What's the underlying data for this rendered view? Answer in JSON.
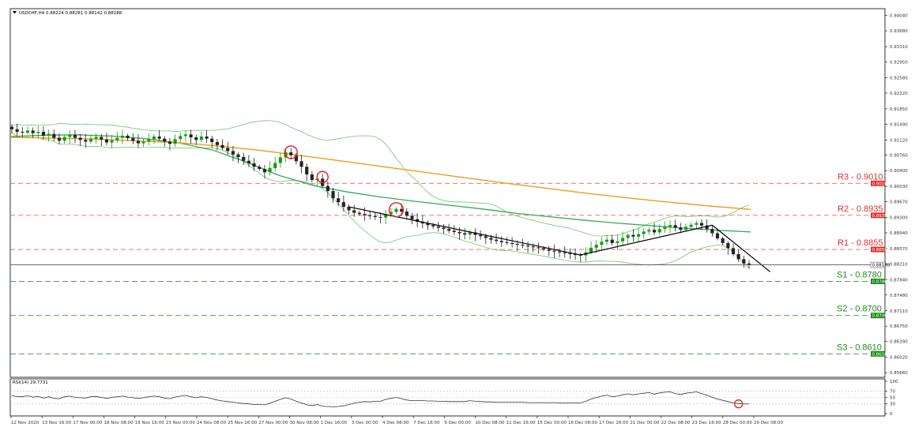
{
  "header": {
    "symbol": "USDCHF,H4",
    "ohlc": "0.88224 0.88281 0.88142 0.88188",
    "full": "USDCHF,H4  0.88224 0.88281 0.88142 0.88188"
  },
  "colors": {
    "candle_up": "#1a9a1a",
    "candle_down": "#222222",
    "bollinger": "#6cc66c",
    "ma_green": "#33aa55",
    "ma_orange": "#f39a1f",
    "resistance": "#e03030",
    "support": "#1e8a1e",
    "trendline": "#000000",
    "rsi_line": "#333333",
    "marker": "#e02020"
  },
  "chart_data": {
    "type": "line",
    "title": "USDCHF,H4",
    "y_ticks": [
      "0.94040",
      "0.93680",
      "0.93310",
      "0.92950",
      "0.92580",
      "0.92220",
      "0.91850",
      "0.91490",
      "0.91120",
      "0.90760",
      "0.90400",
      "0.90030",
      "0.89670",
      "0.89300",
      "0.88940",
      "0.88570",
      "0.88210",
      "0.87840",
      "0.87480",
      "0.87110",
      "0.86750",
      "0.86390",
      "0.86020",
      "0.85660"
    ],
    "ylim": [
      0.8555,
      0.942
    ],
    "current_price": 0.88188,
    "current_price_label": "0.88188",
    "x_ticks": [
      "12 Nov 2020",
      "13 Nov 16:00",
      "17 Nov 00:00",
      "18 Nov 08:00",
      "19 Nov 16:00",
      "23 Nov 00:00",
      "24 Nov 08:00",
      "25 Nov 16:00",
      "27 Nov 00:00",
      "30 Nov 08:00",
      "1 Dec 16:00",
      "3 Dec 00:00",
      "4 Dec 08:00",
      "7 Dec 16:00",
      "9 Dec 00:00",
      "10 Dec 08:00",
      "11 Dec 16:00",
      "15 Dec 00:00",
      "16 Dec 08:00",
      "17 Dec 16:00",
      "21 Dec 00:00",
      "22 Dec 08:00",
      "23 Dec 16:00",
      "28 Dec 00:00",
      "29 Dec 08:00"
    ],
    "levels": [
      {
        "label": "R3 - 0.9010",
        "tag": "0.90100",
        "value": 0.901,
        "kind": "resistance"
      },
      {
        "label": "R2 - 0.8935",
        "tag": "0.89350",
        "value": 0.8935,
        "kind": "resistance"
      },
      {
        "label": "R1 - 0.8855",
        "tag": "0.88550",
        "value": 0.8855,
        "kind": "resistance"
      },
      {
        "label": "S1 - 0.8780",
        "tag": "0.87800",
        "value": 0.878,
        "kind": "support"
      },
      {
        "label": "S2 - 0.8700",
        "tag": "0.87000",
        "value": 0.87,
        "kind": "support"
      },
      {
        "label": "S3 - 0.8610",
        "tag": "0.86100",
        "value": 0.861,
        "kind": "support"
      }
    ],
    "closes": [
      0.9137,
      0.9131,
      0.9129,
      0.9134,
      0.9128,
      0.9131,
      0.9122,
      0.9126,
      0.9117,
      0.911,
      0.9119,
      0.9124,
      0.9117,
      0.9112,
      0.9108,
      0.9115,
      0.9119,
      0.9113,
      0.9106,
      0.9111,
      0.9117,
      0.9122,
      0.9116,
      0.911,
      0.9104,
      0.9108,
      0.9114,
      0.912,
      0.9115,
      0.9108,
      0.9103,
      0.9114,
      0.9121,
      0.9125,
      0.9118,
      0.9112,
      0.912,
      0.9115,
      0.9107,
      0.91,
      0.9093,
      0.9086,
      0.9078,
      0.9072,
      0.9063,
      0.9057,
      0.9049,
      0.9044,
      0.9036,
      0.9046,
      0.9058,
      0.9071,
      0.9083,
      0.9076,
      0.9062,
      0.9049,
      0.9031,
      0.9018,
      0.9021,
      0.9004,
      0.8992,
      0.8975,
      0.8966,
      0.8955,
      0.8947,
      0.8941,
      0.8938,
      0.8935,
      0.8933,
      0.8931,
      0.893,
      0.8938,
      0.8943,
      0.895,
      0.8944,
      0.8934,
      0.8926,
      0.892,
      0.8916,
      0.8912,
      0.8909,
      0.8906,
      0.8903,
      0.8899,
      0.8896,
      0.8893,
      0.889,
      0.8895,
      0.8889,
      0.8886,
      0.8882,
      0.8878,
      0.8875,
      0.8872,
      0.887,
      0.8868,
      0.8866,
      0.8864,
      0.8862,
      0.886,
      0.8858,
      0.8855,
      0.8852,
      0.885,
      0.8848,
      0.8846,
      0.8844,
      0.8842,
      0.8841,
      0.8848,
      0.8859,
      0.8866,
      0.8873,
      0.8878,
      0.887,
      0.8874,
      0.8882,
      0.8889,
      0.8885,
      0.8891,
      0.8897,
      0.8901,
      0.8895,
      0.8903,
      0.8908,
      0.8912,
      0.8906,
      0.8901,
      0.8908,
      0.8913,
      0.8917,
      0.8911,
      0.8903,
      0.8893,
      0.8881,
      0.887,
      0.8858,
      0.8844,
      0.8832,
      0.8822,
      0.8819
    ],
    "series": [
      {
        "values": [
          0.912,
          0.9123,
          0.9124,
          0.9121,
          0.9115,
          0.9105,
          0.9088,
          0.906,
          0.9028,
          0.9005,
          0.899,
          0.8978,
          0.8968,
          0.8959,
          0.895,
          0.894,
          0.8932,
          0.8924,
          0.8917,
          0.8911,
          0.8905,
          0.89,
          0.8896
        ]
      },
      {
        "values": [
          0.9118,
          0.9116,
          0.9114,
          0.911,
          0.9106,
          0.9098,
          0.9088,
          0.9076,
          0.9063,
          0.905,
          0.9037,
          0.9024,
          0.9011,
          0.8999,
          0.8987,
          0.8976,
          0.8966,
          0.8957,
          0.8949
        ]
      }
    ],
    "rsi": {
      "label": "RSI(14) 29.7731",
      "period": 14,
      "value": 29.7731,
      "ticks": [
        "100",
        "70",
        "50",
        "30",
        "0"
      ],
      "ylim": [
        0,
        100
      ],
      "levels": [
        70,
        50,
        30
      ],
      "values": [
        55,
        53,
        52,
        55,
        51,
        53,
        48,
        52,
        47,
        46,
        52,
        54,
        50,
        49,
        48,
        52,
        53,
        50,
        47,
        50,
        52,
        54,
        51,
        49,
        47,
        49,
        52,
        54,
        52,
        48,
        46,
        51,
        54,
        56,
        52,
        49,
        52,
        50,
        46,
        42,
        39,
        37,
        35,
        33,
        31,
        30,
        28,
        28,
        27,
        32,
        38,
        44,
        49,
        45,
        38,
        33,
        27,
        25,
        28,
        23,
        22,
        21,
        22,
        24,
        28,
        32,
        35,
        37,
        36,
        38,
        38,
        44,
        47,
        50,
        46,
        42,
        40,
        40,
        40,
        39,
        39,
        38,
        38,
        37,
        37,
        37,
        37,
        40,
        38,
        37,
        36,
        36,
        35,
        35,
        35,
        35,
        35,
        35,
        34,
        34,
        34,
        34,
        34,
        34,
        33,
        33,
        33,
        33,
        33,
        38,
        45,
        50,
        54,
        57,
        52,
        54,
        58,
        61,
        58,
        61,
        63,
        65,
        60,
        64,
        66,
        67,
        62,
        59,
        63,
        65,
        67,
        62,
        57,
        50,
        45,
        41,
        37,
        33,
        31,
        30,
        29.77
      ]
    }
  }
}
